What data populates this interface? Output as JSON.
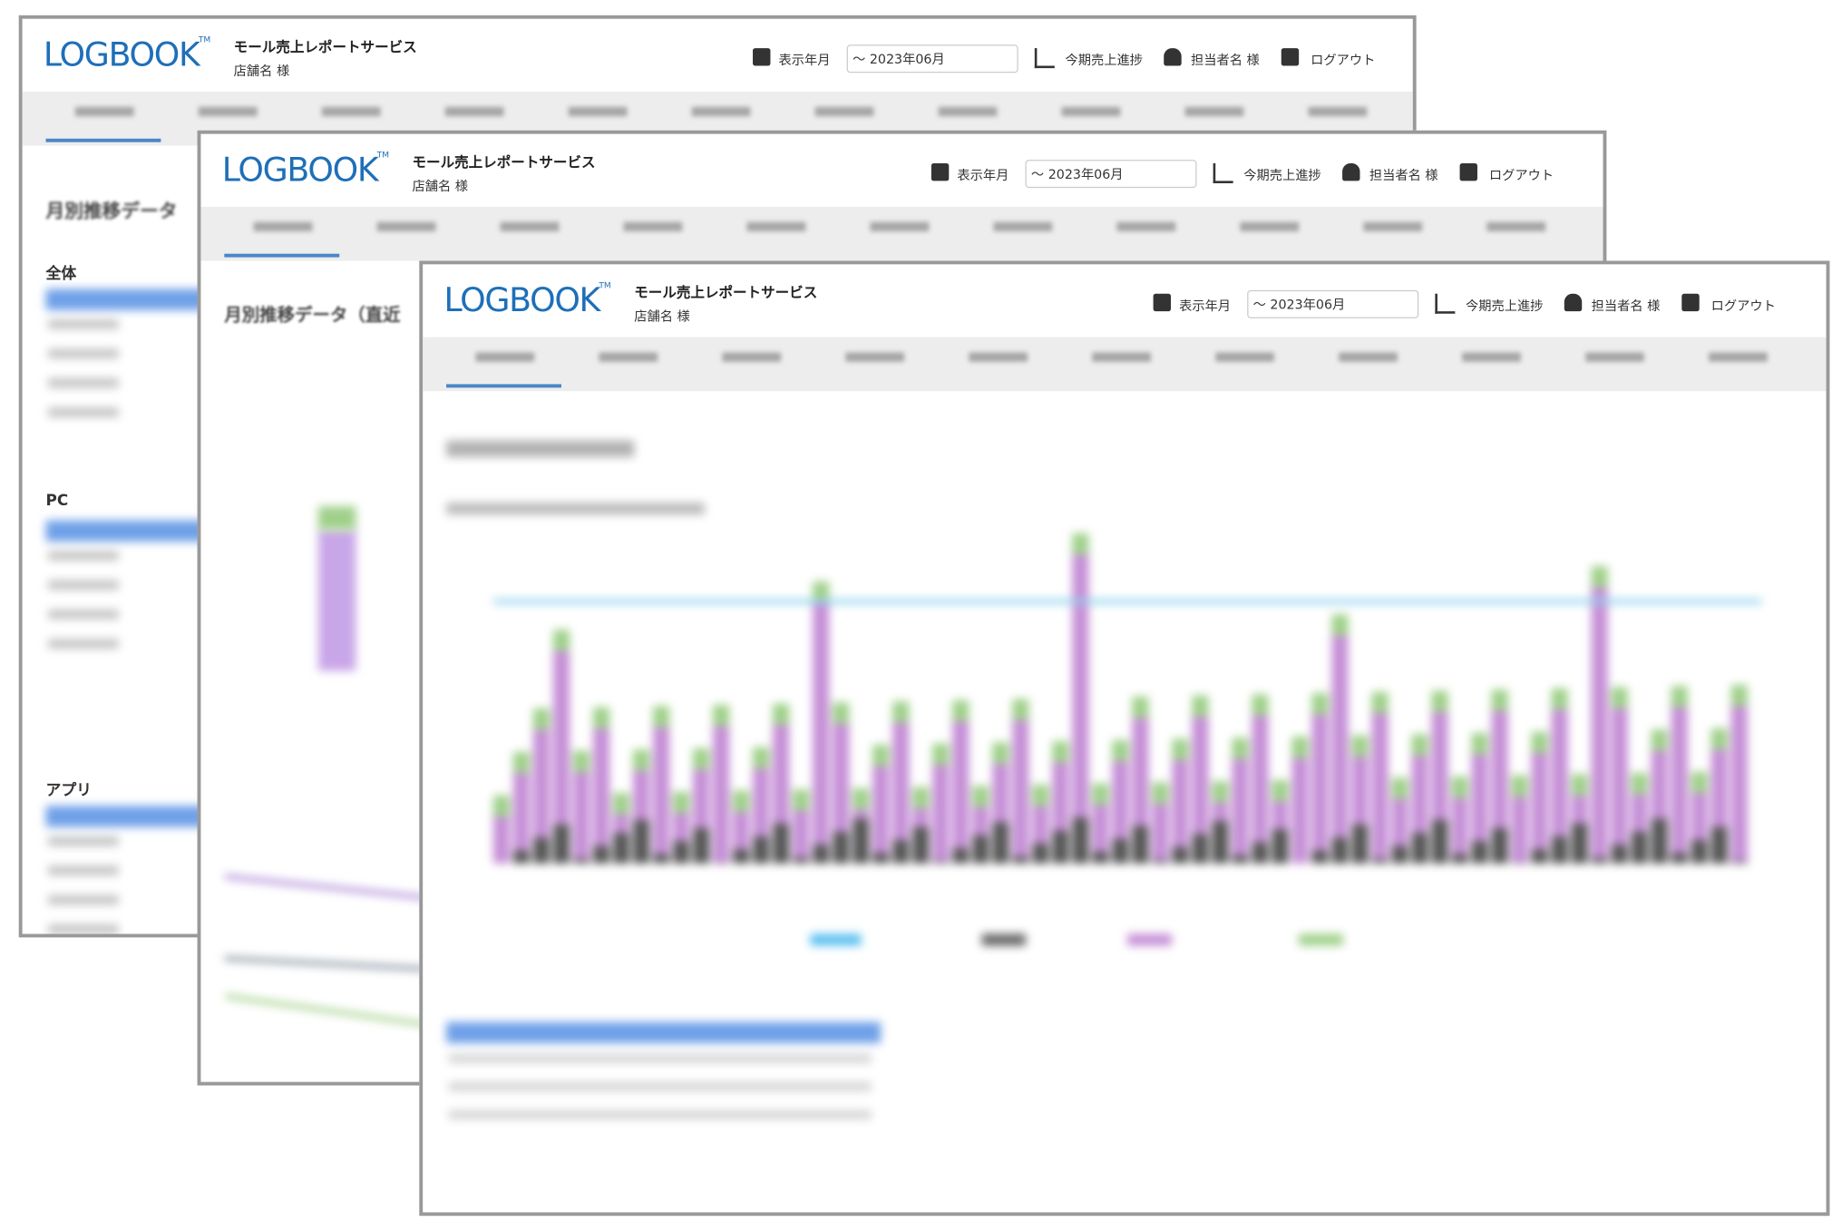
{
  "header": {
    "logo": "LOGBOOK",
    "tm": "TM",
    "service": "モール売上レポートサービス",
    "store": "店舗名 様",
    "period_label": "表示年月",
    "period_value": "～ 2023年06月",
    "progress": "今期売上進捗",
    "user": "担当者名 様",
    "logout": "ログアウト"
  },
  "window1": {
    "heading": "月別推移データ",
    "sections": [
      "全体",
      "PC",
      "アプリ"
    ]
  },
  "window2": {
    "heading": "月別推移データ（直近"
  }
}
